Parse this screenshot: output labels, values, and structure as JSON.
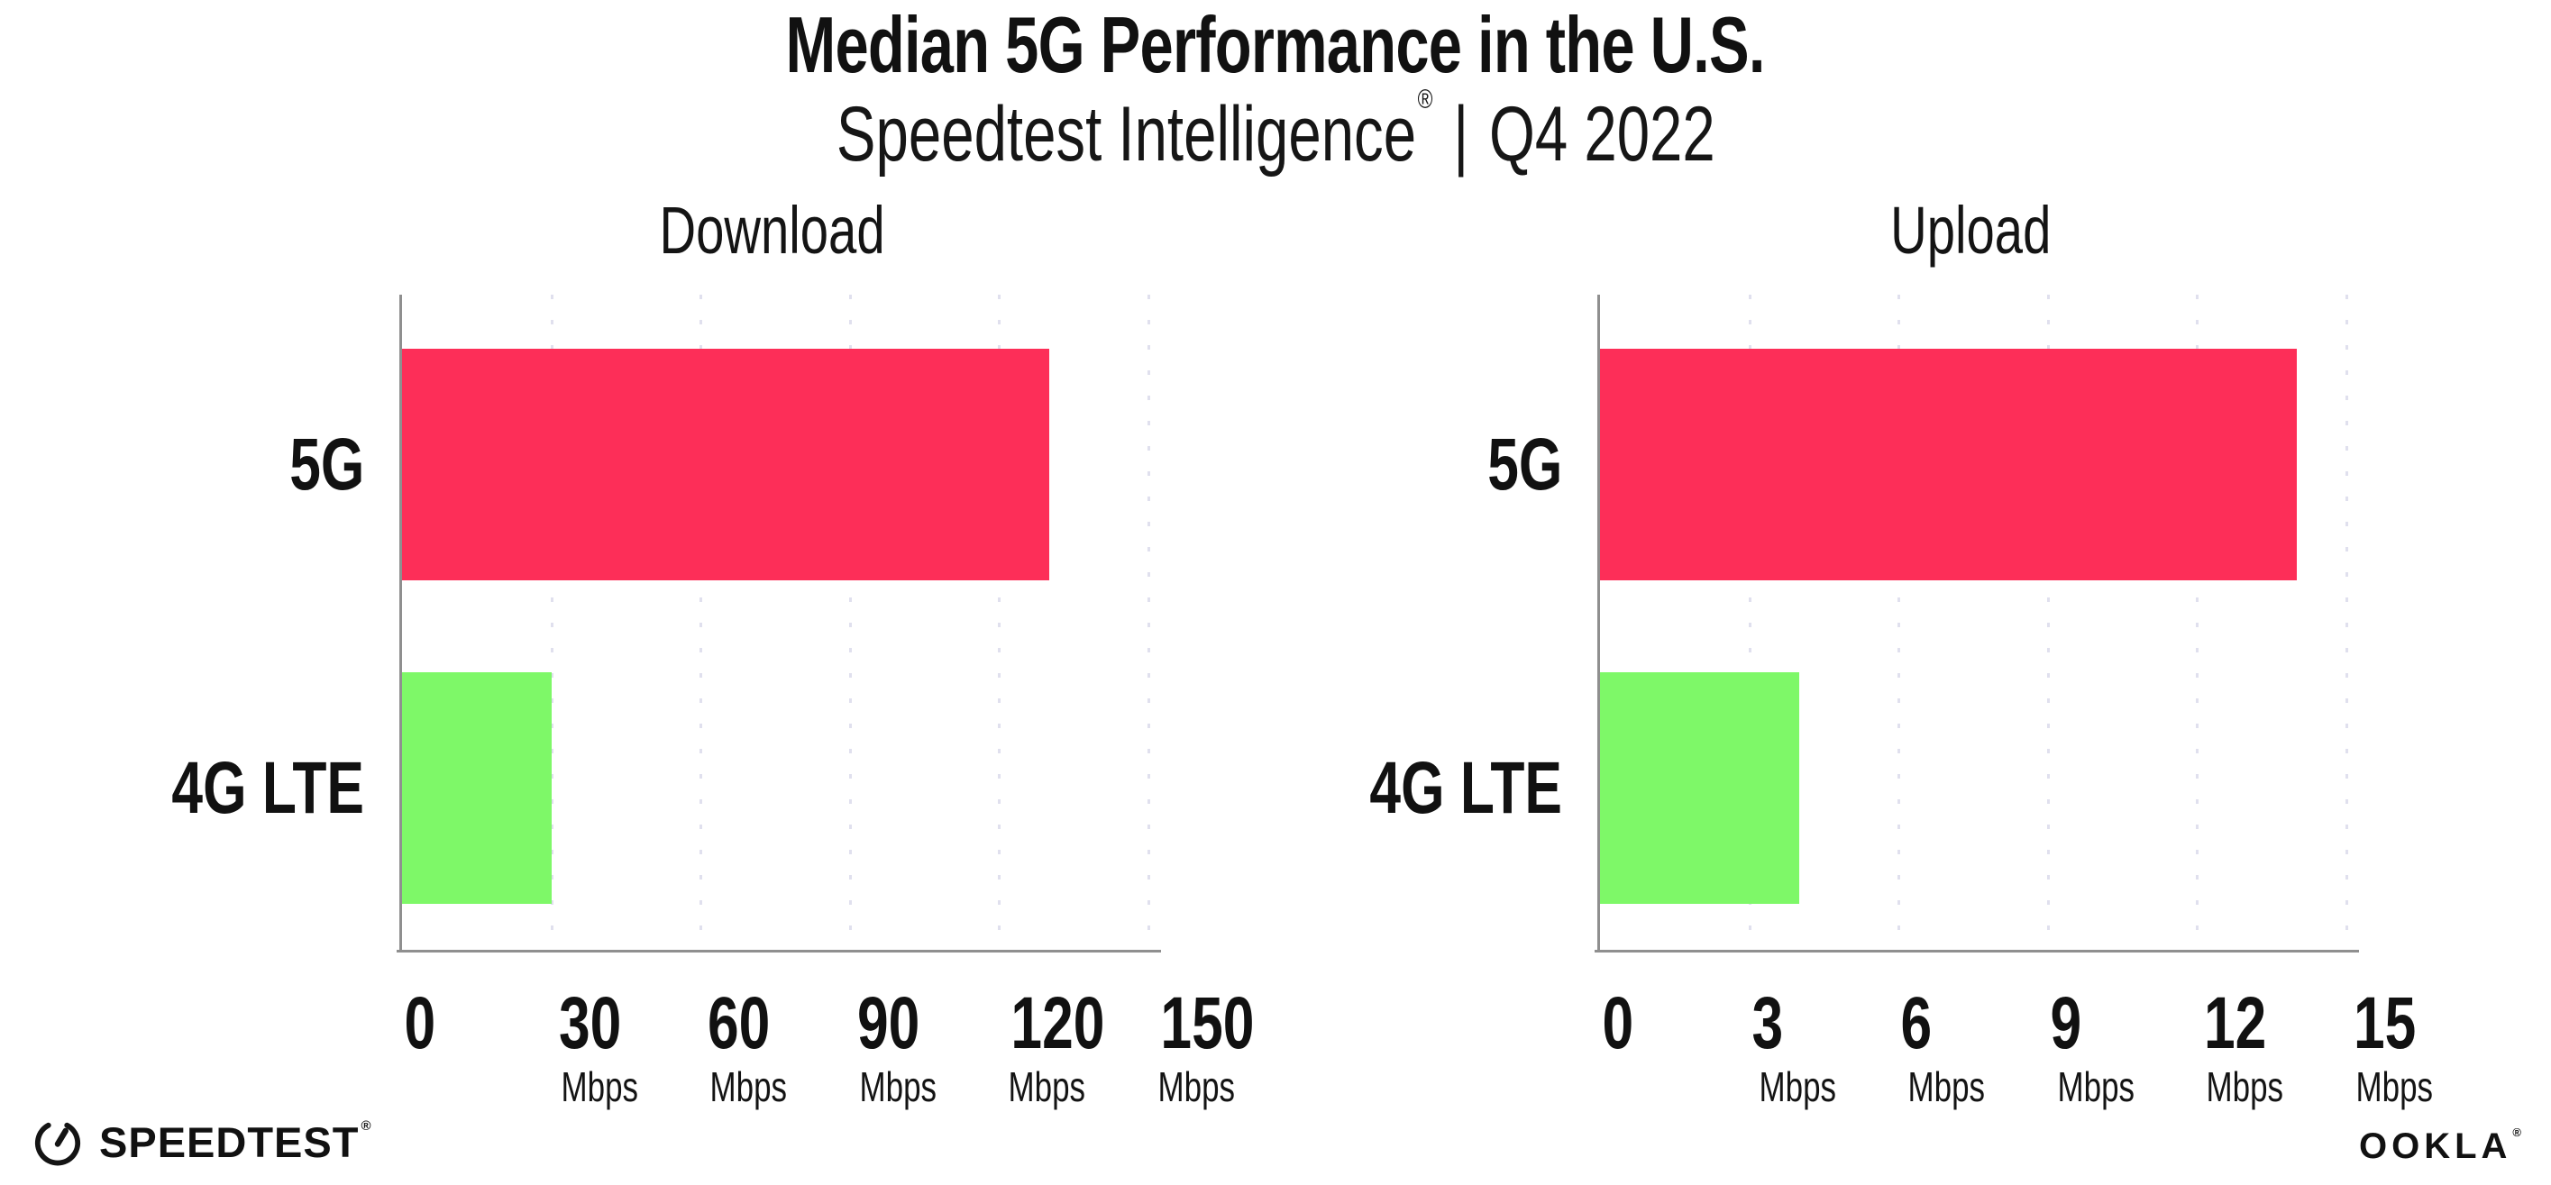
{
  "header": {
    "title": "Median 5G Performance in the U.S.",
    "subtitle_brand": "Speedtest Intelligence",
    "subtitle_reg": "®",
    "subtitle_divider": "|",
    "subtitle_period": "Q4 2022"
  },
  "chart_data": [
    {
      "type": "bar",
      "orientation": "horizontal",
      "title": "Download",
      "categories": [
        "5G",
        "4G LTE"
      ],
      "values": [
        130,
        30
      ],
      "unit": "Mbps",
      "xlim": [
        0,
        150
      ],
      "ticks": [
        0,
        30,
        60,
        90,
        120,
        150
      ],
      "grid": "dotted-vertical-gridlines",
      "legend": "none"
    },
    {
      "type": "bar",
      "orientation": "horizontal",
      "title": "Upload",
      "categories": [
        "5G",
        "4G LTE"
      ],
      "values": [
        14,
        4
      ],
      "unit": "Mbps",
      "xlim": [
        0,
        15
      ],
      "ticks": [
        0,
        3,
        6,
        9,
        12,
        15
      ],
      "grid": "dotted-vertical-gridlines",
      "legend": "none"
    }
  ],
  "colors": {
    "bars": [
      "#fd2e58",
      "#7ef868"
    ],
    "bar_5g": "#fd2e58",
    "bar_4g_lte": "#7ef868",
    "axis": "#8f8f8f",
    "gridline": "#e0e0ee",
    "text": "#111111"
  },
  "footer": {
    "speedtest_label": "SPEEDTEST",
    "speedtest_reg": "®",
    "ookla_label": "OOKLA",
    "ookla_reg": "®"
  }
}
